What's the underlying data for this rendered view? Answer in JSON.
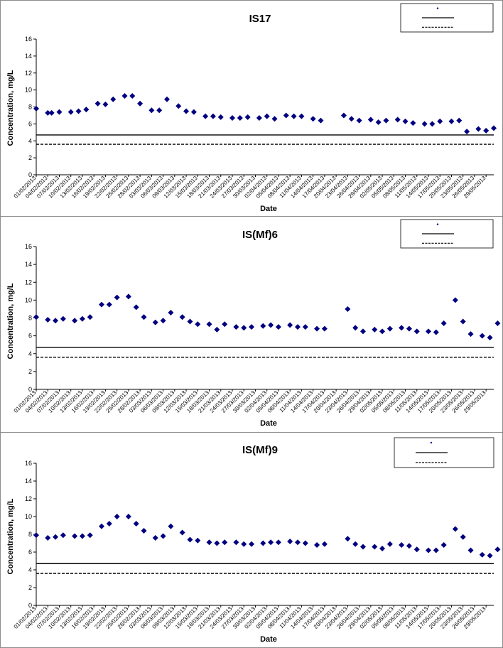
{
  "chart_data": [
    {
      "type": "scatter",
      "title": "IS17",
      "xlabel": "Date",
      "ylabel": "Concentration, mg/L",
      "ylim": [
        0,
        16
      ],
      "yticks": [
        "0",
        "2",
        "4",
        "6",
        "8",
        "10",
        "12",
        "14",
        "16"
      ],
      "x_range": [
        "01/02/2013",
        "31/05/2013"
      ],
      "xticks": [
        "01/02/2013",
        "04/02/2013",
        "07/02/2013",
        "10/02/2013",
        "13/02/2013",
        "16/02/2013",
        "19/02/2013",
        "22/02/2013",
        "25/02/2013",
        "28/02/2013",
        "03/03/2013",
        "06/03/2013",
        "09/03/2013",
        "12/03/2013",
        "15/03/2013",
        "18/03/2013",
        "21/03/2013",
        "24/03/2013",
        "27/03/2013",
        "30/03/2013",
        "02/04/2013",
        "05/04/2013",
        "08/04/2013",
        "11/04/2013",
        "14/04/2013",
        "17/04/2013",
        "20/04/2013",
        "23/04/2013",
        "26/04/2013",
        "29/04/2013",
        "02/05/2013",
        "05/05/2013",
        "08/05/2013",
        "11/05/2013",
        "14/05/2013",
        "17/05/2013",
        "20/05/2013",
        "23/05/2013",
        "26/05/2013",
        "29/05/2013"
      ],
      "grid": false,
      "legend_position": "top-right",
      "series": [
        {
          "legend_text": "",
          "style": "markers",
          "marker": "diamond",
          "color": "#000080",
          "points": [
            [
              "01/02/2013",
              7.8
            ],
            [
              "04/02/2013",
              7.3
            ],
            [
              "05/02/2013",
              7.3
            ],
            [
              "07/02/2013",
              7.4
            ],
            [
              "10/02/2013",
              7.4
            ],
            [
              "12/02/2013",
              7.5
            ],
            [
              "14/02/2013",
              7.7
            ],
            [
              "17/02/2013",
              8.4
            ],
            [
              "19/02/2013",
              8.3
            ],
            [
              "21/02/2013",
              8.9
            ],
            [
              "24/02/2013",
              9.3
            ],
            [
              "26/02/2013",
              9.3
            ],
            [
              "28/02/2013",
              8.4
            ],
            [
              "03/03/2013",
              7.6
            ],
            [
              "05/03/2013",
              7.6
            ],
            [
              "07/03/2013",
              8.9
            ],
            [
              "10/03/2013",
              8.1
            ],
            [
              "12/03/2013",
              7.5
            ],
            [
              "14/03/2013",
              7.4
            ],
            [
              "17/03/2013",
              6.9
            ],
            [
              "19/03/2013",
              6.9
            ],
            [
              "21/03/2013",
              6.8
            ],
            [
              "24/03/2013",
              6.7
            ],
            [
              "26/03/2013",
              6.7
            ],
            [
              "28/03/2013",
              6.8
            ],
            [
              "31/03/2013",
              6.7
            ],
            [
              "02/04/2013",
              6.9
            ],
            [
              "04/04/2013",
              6.6
            ],
            [
              "07/04/2013",
              7.0
            ],
            [
              "09/04/2013",
              6.9
            ],
            [
              "11/04/2013",
              6.9
            ],
            [
              "14/04/2013",
              6.6
            ],
            [
              "16/04/2013",
              6.4
            ],
            [
              "22/04/2013",
              7.0
            ],
            [
              "24/04/2013",
              6.6
            ],
            [
              "26/04/2013",
              6.4
            ],
            [
              "29/04/2013",
              6.5
            ],
            [
              "01/05/2013",
              6.2
            ],
            [
              "03/05/2013",
              6.4
            ],
            [
              "06/05/2013",
              6.5
            ],
            [
              "08/05/2013",
              6.3
            ],
            [
              "10/05/2013",
              6.1
            ],
            [
              "13/05/2013",
              6.0
            ],
            [
              "15/05/2013",
              6.0
            ],
            [
              "17/05/2013",
              6.3
            ],
            [
              "20/05/2013",
              6.3
            ],
            [
              "22/05/2013",
              6.4
            ],
            [
              "24/05/2013",
              5.1
            ],
            [
              "27/05/2013",
              5.4
            ],
            [
              "29/05/2013",
              5.2
            ],
            [
              "31/05/2013",
              5.5
            ]
          ]
        },
        {
          "legend_text": "",
          "style": "solid",
          "color": "#000000",
          "y": 4.7
        },
        {
          "legend_text": "",
          "style": "dashed",
          "color": "#000000",
          "y": 3.6
        }
      ]
    },
    {
      "type": "scatter",
      "title": "IS(Mf)6",
      "xlabel": "Date",
      "ylabel": "Concentration, mg/L",
      "ylim": [
        0,
        16
      ],
      "yticks": [
        "0",
        "2",
        "4",
        "6",
        "8",
        "10",
        "12",
        "14",
        "16"
      ],
      "x_range": [
        "01/02/2013",
        "31/05/2013"
      ],
      "xticks": [
        "01/02/2013",
        "04/02/2013",
        "07/02/2013",
        "10/02/2013",
        "13/02/2013",
        "16/02/2013",
        "19/02/2013",
        "22/02/2013",
        "25/02/2013",
        "28/02/2013",
        "03/03/2013",
        "06/03/2013",
        "09/03/2013",
        "12/03/2013",
        "15/03/2013",
        "18/03/2013",
        "21/03/2013",
        "24/03/2013",
        "27/03/2013",
        "30/03/2013",
        "02/04/2013",
        "05/04/2013",
        "08/04/2013",
        "11/04/2013",
        "14/04/2013",
        "17/04/2013",
        "20/04/2013",
        "23/04/2013",
        "26/04/2013",
        "29/04/2013",
        "02/05/2013",
        "05/05/2013",
        "08/05/2013",
        "11/05/2013",
        "14/05/2013",
        "17/05/2013",
        "20/05/2013",
        "23/05/2013",
        "26/05/2013",
        "29/05/2013"
      ],
      "grid": false,
      "legend_position": "top-right",
      "series": [
        {
          "legend_text": "",
          "style": "markers",
          "marker": "diamond",
          "color": "#000080",
          "points": [
            [
              "01/02/2013",
              8.1
            ],
            [
              "04/02/2013",
              7.8
            ],
            [
              "06/02/2013",
              7.7
            ],
            [
              "08/02/2013",
              7.9
            ],
            [
              "11/02/2013",
              7.7
            ],
            [
              "13/02/2013",
              7.9
            ],
            [
              "15/02/2013",
              8.1
            ],
            [
              "18/02/2013",
              9.5
            ],
            [
              "20/02/2013",
              9.5
            ],
            [
              "22/02/2013",
              10.3
            ],
            [
              "25/02/2013",
              10.4
            ],
            [
              "27/02/2013",
              9.2
            ],
            [
              "01/03/2013",
              8.1
            ],
            [
              "04/03/2013",
              7.5
            ],
            [
              "06/03/2013",
              7.7
            ],
            [
              "08/03/2013",
              8.6
            ],
            [
              "11/03/2013",
              8.1
            ],
            [
              "13/03/2013",
              7.6
            ],
            [
              "15/03/2013",
              7.3
            ],
            [
              "18/03/2013",
              7.3
            ],
            [
              "20/03/2013",
              6.7
            ],
            [
              "22/03/2013",
              7.3
            ],
            [
              "25/03/2013",
              7.0
            ],
            [
              "27/03/2013",
              6.9
            ],
            [
              "29/03/2013",
              7.0
            ],
            [
              "01/04/2013",
              7.1
            ],
            [
              "03/04/2013",
              7.2
            ],
            [
              "05/04/2013",
              7.0
            ],
            [
              "08/04/2013",
              7.2
            ],
            [
              "10/04/2013",
              7.0
            ],
            [
              "12/04/2013",
              7.0
            ],
            [
              "15/04/2013",
              6.8
            ],
            [
              "17/04/2013",
              6.8
            ],
            [
              "23/04/2013",
              9.0
            ],
            [
              "25/04/2013",
              6.9
            ],
            [
              "27/04/2013",
              6.5
            ],
            [
              "30/04/2013",
              6.7
            ],
            [
              "02/05/2013",
              6.5
            ],
            [
              "04/05/2013",
              6.8
            ],
            [
              "07/05/2013",
              6.9
            ],
            [
              "09/05/2013",
              6.8
            ],
            [
              "11/05/2013",
              6.5
            ],
            [
              "14/05/2013",
              6.5
            ],
            [
              "16/05/2013",
              6.4
            ],
            [
              "18/05/2013",
              7.4
            ],
            [
              "21/05/2013",
              10.0
            ],
            [
              "23/05/2013",
              7.6
            ],
            [
              "25/05/2013",
              6.2
            ],
            [
              "28/05/2013",
              6.0
            ],
            [
              "30/05/2013",
              5.8
            ],
            [
              "01/06/2013",
              7.4
            ]
          ]
        },
        {
          "legend_text": "",
          "style": "solid",
          "color": "#000000",
          "y": 4.7
        },
        {
          "legend_text": "",
          "style": "dashed",
          "color": "#000000",
          "y": 3.6
        }
      ]
    },
    {
      "type": "scatter",
      "title": "IS(Mf)9",
      "xlabel": "Date",
      "ylabel": "Concentration, mg/L",
      "ylim": [
        0,
        16
      ],
      "yticks": [
        "0",
        "2",
        "4",
        "6",
        "8",
        "10",
        "12",
        "14",
        "16"
      ],
      "x_range": [
        "01/02/2013",
        "31/05/2013"
      ],
      "xticks": [
        "01/02/2013",
        "04/02/2013",
        "07/02/2013",
        "10/02/2013",
        "13/02/2013",
        "16/02/2013",
        "19/02/2013",
        "22/02/2013",
        "25/02/2013",
        "28/02/2013",
        "03/03/2013",
        "06/03/2013",
        "09/03/2013",
        "12/03/2013",
        "15/03/2013",
        "18/03/2013",
        "21/03/2013",
        "24/03/2013",
        "27/03/2013",
        "30/03/2013",
        "02/04/2013",
        "05/04/2013",
        "08/04/2013",
        "11/04/2013",
        "14/04/2013",
        "17/04/2013",
        "20/04/2013",
        "23/04/2013",
        "26/04/2013",
        "29/04/2013",
        "02/05/2013",
        "05/05/2013",
        "08/05/2013",
        "11/05/2013",
        "14/05/2013",
        "17/05/2013",
        "20/05/2013",
        "23/05/2013",
        "26/05/2013",
        "29/05/2013"
      ],
      "grid": false,
      "legend_position": "top-right",
      "series": [
        {
          "legend_text": "",
          "style": "markers",
          "marker": "diamond",
          "color": "#000080",
          "points": [
            [
              "01/02/2013",
              7.9
            ],
            [
              "04/02/2013",
              7.6
            ],
            [
              "06/02/2013",
              7.7
            ],
            [
              "08/02/2013",
              7.9
            ],
            [
              "11/02/2013",
              7.8
            ],
            [
              "13/02/2013",
              7.8
            ],
            [
              "15/02/2013",
              7.9
            ],
            [
              "18/02/2013",
              8.9
            ],
            [
              "20/02/2013",
              9.2
            ],
            [
              "22/02/2013",
              10.0
            ],
            [
              "25/02/2013",
              10.0
            ],
            [
              "27/02/2013",
              9.2
            ],
            [
              "01/03/2013",
              8.4
            ],
            [
              "04/03/2013",
              7.6
            ],
            [
              "06/03/2013",
              7.8
            ],
            [
              "08/03/2013",
              8.9
            ],
            [
              "11/03/2013",
              8.2
            ],
            [
              "13/03/2013",
              7.4
            ],
            [
              "15/03/2013",
              7.3
            ],
            [
              "18/03/2013",
              7.1
            ],
            [
              "20/03/2013",
              7.0
            ],
            [
              "22/03/2013",
              7.1
            ],
            [
              "25/03/2013",
              7.1
            ],
            [
              "27/03/2013",
              6.9
            ],
            [
              "29/03/2013",
              6.9
            ],
            [
              "01/04/2013",
              7.0
            ],
            [
              "03/04/2013",
              7.1
            ],
            [
              "05/04/2013",
              7.1
            ],
            [
              "08/04/2013",
              7.2
            ],
            [
              "10/04/2013",
              7.1
            ],
            [
              "12/04/2013",
              7.0
            ],
            [
              "15/04/2013",
              6.8
            ],
            [
              "17/04/2013",
              6.9
            ],
            [
              "23/04/2013",
              7.5
            ],
            [
              "25/04/2013",
              6.9
            ],
            [
              "27/04/2013",
              6.6
            ],
            [
              "30/04/2013",
              6.6
            ],
            [
              "02/05/2013",
              6.4
            ],
            [
              "04/05/2013",
              6.9
            ],
            [
              "07/05/2013",
              6.8
            ],
            [
              "09/05/2013",
              6.7
            ],
            [
              "11/05/2013",
              6.3
            ],
            [
              "14/05/2013",
              6.2
            ],
            [
              "16/05/2013",
              6.2
            ],
            [
              "18/05/2013",
              6.8
            ],
            [
              "21/05/2013",
              8.6
            ],
            [
              "23/05/2013",
              7.7
            ],
            [
              "25/05/2013",
              6.2
            ],
            [
              "28/05/2013",
              5.7
            ],
            [
              "30/05/2013",
              5.6
            ],
            [
              "01/06/2013",
              6.3
            ]
          ]
        },
        {
          "legend_text": "",
          "style": "solid",
          "color": "#000000",
          "y": 4.7
        },
        {
          "legend_text": "",
          "style": "dashed",
          "color": "#000000",
          "y": 3.6
        }
      ]
    }
  ]
}
